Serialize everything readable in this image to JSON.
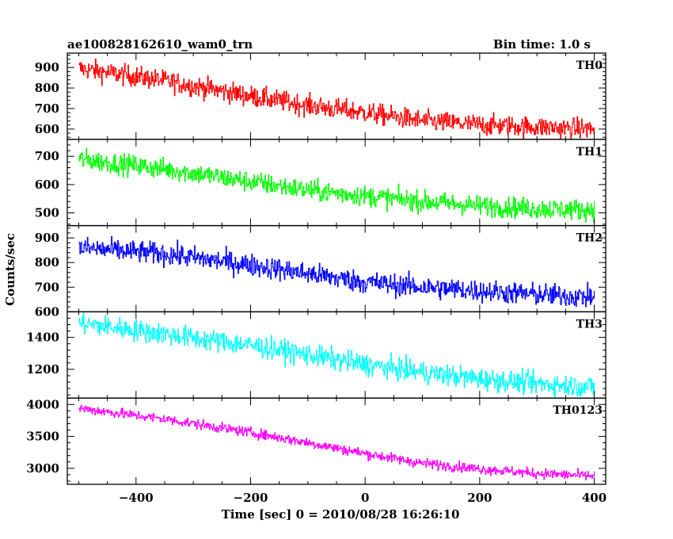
{
  "chart_data": {
    "type": "line",
    "title": "ae100828162610_wam0_trn",
    "bin_label": "Bin time: 1.0 s",
    "xlabel": "Time [sec] 0 = 2010/08/28 16:26:10",
    "ylabel": "Counts/sec",
    "xlim": [
      -520,
      420
    ],
    "x_range": [
      -500,
      400
    ],
    "x_ticks": [
      -400,
      -200,
      0,
      200,
      400
    ],
    "grid": false,
    "panels": [
      {
        "name": "TH0",
        "color": "#ff0000",
        "ylim": [
          550,
          970
        ],
        "y_ticks": [
          600,
          700,
          800,
          900
        ],
        "trend": [
          [
            -500,
            895
          ],
          [
            -350,
            835
          ],
          [
            -200,
            760
          ],
          [
            -100,
            715
          ],
          [
            0,
            680
          ],
          [
            100,
            640
          ],
          [
            200,
            620
          ],
          [
            300,
            610
          ],
          [
            400,
            600
          ]
        ],
        "noise": 36
      },
      {
        "name": "TH1",
        "color": "#00ff00",
        "ylim": [
          455,
          760
        ],
        "y_ticks": [
          500,
          600,
          700
        ],
        "trend": [
          [
            -500,
            690
          ],
          [
            -350,
            655
          ],
          [
            -200,
            610
          ],
          [
            -100,
            580
          ],
          [
            0,
            560
          ],
          [
            100,
            540
          ],
          [
            200,
            525
          ],
          [
            300,
            515
          ],
          [
            400,
            510
          ]
        ],
        "noise": 26
      },
      {
        "name": "TH2",
        "color": "#0000ff",
        "ylim": [
          600,
          950
        ],
        "y_ticks": [
          600,
          700,
          800,
          900
        ],
        "trend": [
          [
            -500,
            860
          ],
          [
            -350,
            835
          ],
          [
            -200,
            790
          ],
          [
            -100,
            755
          ],
          [
            0,
            720
          ],
          [
            100,
            700
          ],
          [
            200,
            685
          ],
          [
            300,
            670
          ],
          [
            400,
            660
          ]
        ],
        "noise": 32
      },
      {
        "name": "TH3",
        "color": "#00ffff",
        "ylim": [
          1020,
          1560
        ],
        "y_ticks": [
          1200,
          1400
        ],
        "trend": [
          [
            -500,
            1490
          ],
          [
            -350,
            1420
          ],
          [
            -200,
            1350
          ],
          [
            -100,
            1290
          ],
          [
            0,
            1230
          ],
          [
            100,
            1180
          ],
          [
            200,
            1140
          ],
          [
            300,
            1110
          ],
          [
            400,
            1090
          ]
        ],
        "noise": 48
      },
      {
        "name": "TH0123",
        "color": "#ff00ff",
        "ylim": [
          2750,
          4100
        ],
        "y_ticks": [
          3000,
          3500,
          4000
        ],
        "trend": [
          [
            -500,
            3940
          ],
          [
            -350,
            3770
          ],
          [
            -200,
            3560
          ],
          [
            -100,
            3400
          ],
          [
            0,
            3230
          ],
          [
            100,
            3080
          ],
          [
            200,
            2990
          ],
          [
            300,
            2920
          ],
          [
            400,
            2880
          ]
        ],
        "noise": 55
      }
    ]
  }
}
